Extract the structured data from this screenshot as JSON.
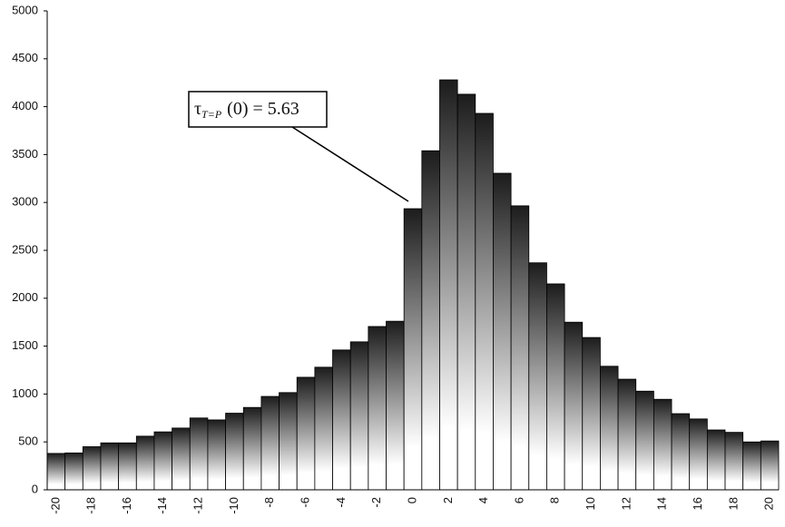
{
  "chart_data": {
    "type": "bar",
    "categories": [
      "-20",
      null,
      "-18",
      null,
      "-16",
      null,
      "-14",
      null,
      "-12",
      null,
      "-10",
      null,
      "-8",
      null,
      "-6",
      null,
      "-4",
      null,
      "-2",
      null,
      "0",
      null,
      "2",
      null,
      "4",
      null,
      "6",
      null,
      "8",
      null,
      "10",
      null,
      "12",
      null,
      "14",
      null,
      "16",
      null,
      "18",
      null,
      "20"
    ],
    "values": [
      380,
      385,
      450,
      490,
      490,
      560,
      605,
      645,
      750,
      730,
      800,
      860,
      975,
      1015,
      1175,
      1280,
      1460,
      1545,
      1705,
      1760,
      2935,
      3540,
      4280,
      4130,
      3930,
      3305,
      2965,
      2370,
      2150,
      1750,
      1590,
      1290,
      1155,
      1030,
      945,
      795,
      740,
      625,
      600,
      500,
      510
    ],
    "gradient": [
      "#1c1c1c",
      "#ffffff"
    ],
    "ylim": [
      0,
      5000
    ],
    "yticks": [
      0,
      500,
      1000,
      1500,
      2000,
      2500,
      3000,
      3500,
      4000,
      4500,
      5000
    ],
    "annotation": {
      "symbol": "τ",
      "subscript": "T=P",
      "text": "(0) = 5.63"
    }
  }
}
